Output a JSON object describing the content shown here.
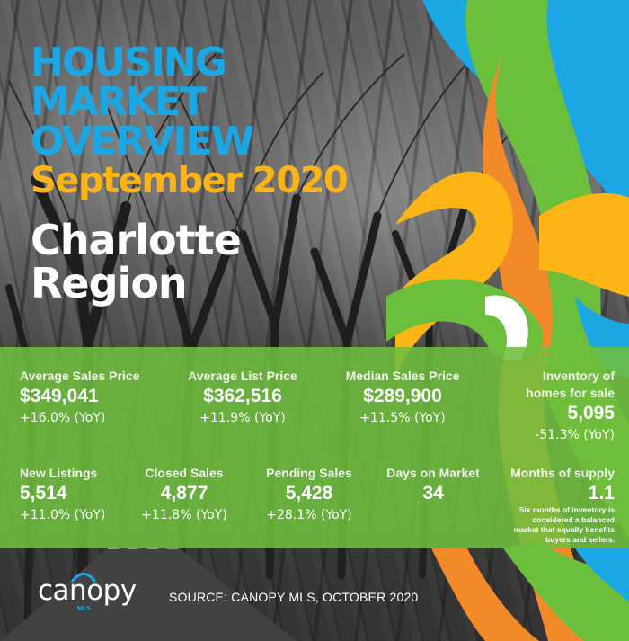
{
  "header": {
    "title_line1": "HOUSING",
    "title_line2": "MARKET",
    "title_line3": "OVERVIEW",
    "month": "September 2020",
    "region_line1": "Charlotte",
    "region_line2": "Region"
  },
  "colors": {
    "title_blue": "#1ba7e4",
    "month_gold": "#fdb515",
    "band_green": "#6ebe3c",
    "ribbon_orange": "#f28a2a",
    "ribbon_green": "#6cbf3b",
    "ribbon_blue": "#1ba7e4",
    "ribbon_gold": "#fdb515"
  },
  "stats_row1": [
    {
      "label": "Average Sales Price",
      "value": "$349,041",
      "change": "+16.0% (YoY)"
    },
    {
      "label": "Average List Price",
      "value": "$362,516",
      "change": "+11.9% (YoY)"
    },
    {
      "label": "Median Sales Price",
      "value": "$289,900",
      "change": "+11.5% (YoY)"
    },
    {
      "label_line1": "Inventory of",
      "label_line2": "homes for sale",
      "value": "5,095",
      "change": "-51.3% (YoY)"
    }
  ],
  "stats_row2": [
    {
      "label": "New Listings",
      "value": "5,514",
      "change": "+11.0% (YoY)"
    },
    {
      "label": "Closed Sales",
      "value": "4,877",
      "change": "+11.8% (YoY)"
    },
    {
      "label": "Pending Sales",
      "value": "5,428",
      "change": "+28.1% (YoY)"
    },
    {
      "label": "Days on Market",
      "value": "34"
    },
    {
      "label": "Months of supply",
      "value": "1.1"
    }
  ],
  "supply_note_lines": [
    "Six months of inventory is",
    "considered a balanced",
    "market that equally benefits",
    "buyers and sellers."
  ],
  "footer": {
    "logo_text": "canopy",
    "logo_sub": "MLS",
    "source": "SOURCE:  CANOPY MLS, OCTOBER 2020"
  }
}
